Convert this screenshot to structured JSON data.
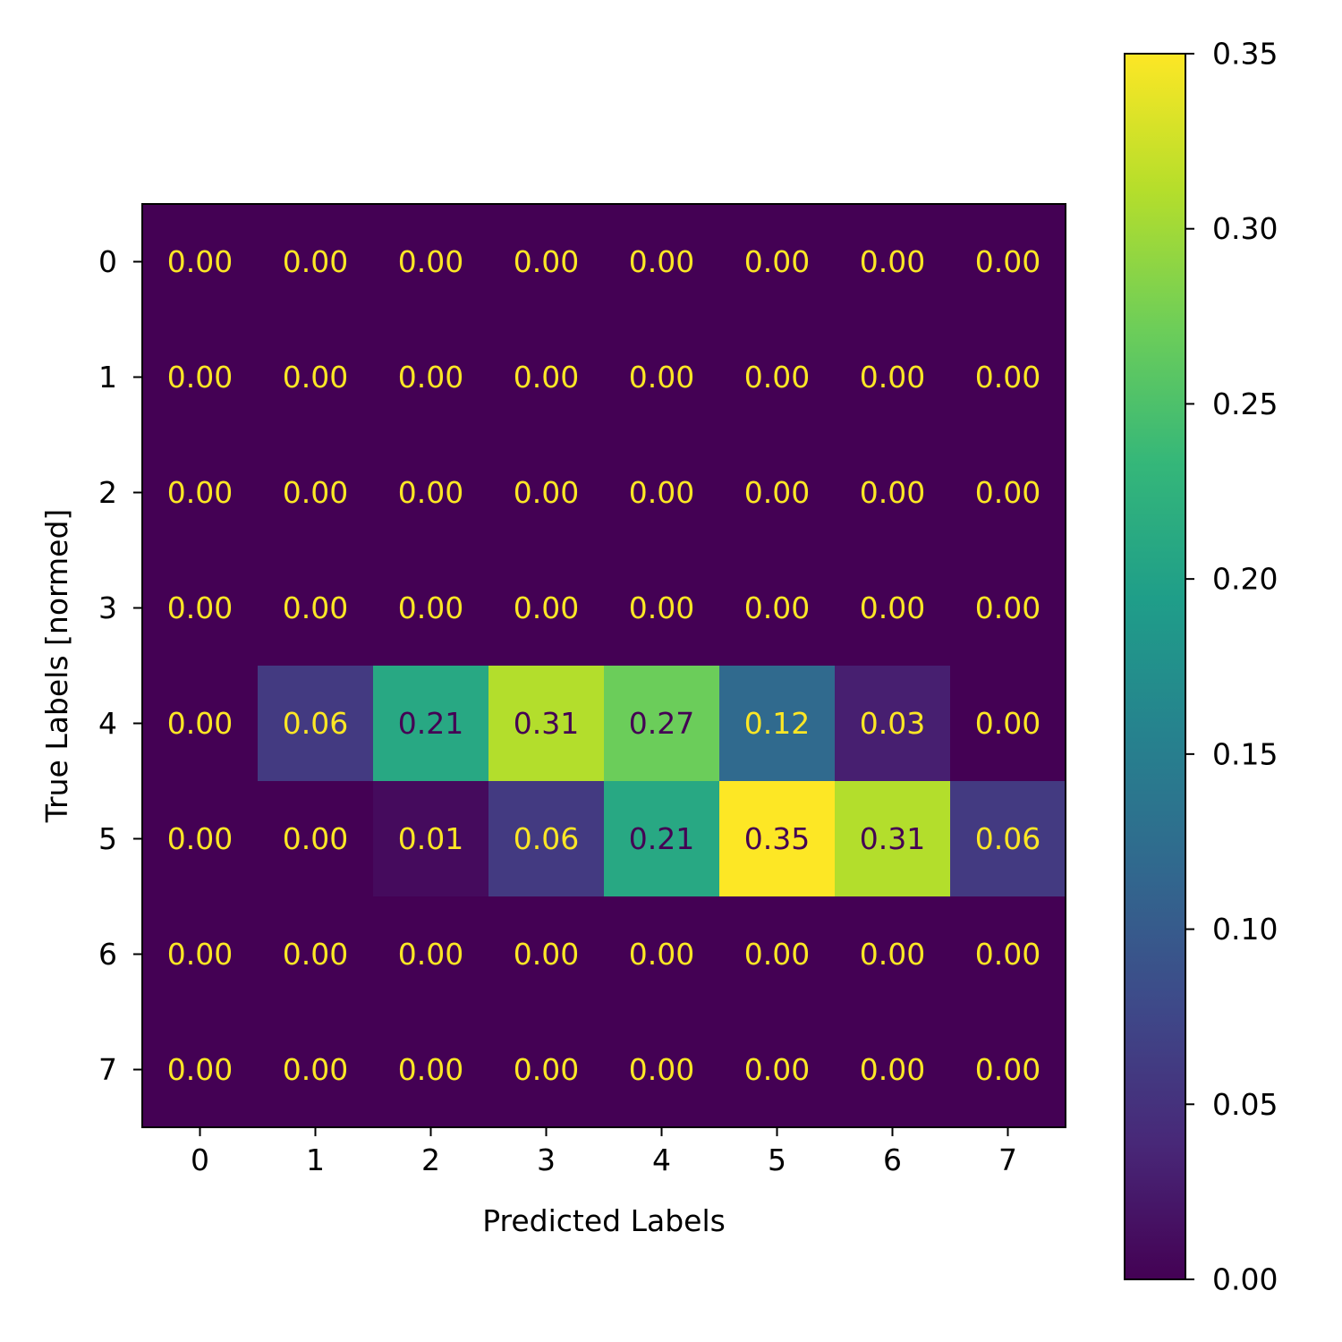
{
  "chart_data": {
    "type": "heatmap",
    "title": "",
    "xlabel": "Predicted Labels",
    "ylabel": "True Labels [normed]",
    "x_categories": [
      "0",
      "1",
      "2",
      "3",
      "4",
      "5",
      "6",
      "7"
    ],
    "y_categories": [
      "0",
      "1",
      "2",
      "3",
      "4",
      "5",
      "6",
      "7"
    ],
    "values": [
      [
        0.0,
        0.0,
        0.0,
        0.0,
        0.0,
        0.0,
        0.0,
        0.0
      ],
      [
        0.0,
        0.0,
        0.0,
        0.0,
        0.0,
        0.0,
        0.0,
        0.0
      ],
      [
        0.0,
        0.0,
        0.0,
        0.0,
        0.0,
        0.0,
        0.0,
        0.0
      ],
      [
        0.0,
        0.0,
        0.0,
        0.0,
        0.0,
        0.0,
        0.0,
        0.0
      ],
      [
        0.0,
        0.06,
        0.21,
        0.31,
        0.27,
        0.12,
        0.03,
        0.0
      ],
      [
        0.0,
        0.0,
        0.01,
        0.06,
        0.21,
        0.35,
        0.31,
        0.06
      ],
      [
        0.0,
        0.0,
        0.0,
        0.0,
        0.0,
        0.0,
        0.0,
        0.0
      ],
      [
        0.0,
        0.0,
        0.0,
        0.0,
        0.0,
        0.0,
        0.0,
        0.0
      ]
    ],
    "colormap": "viridis",
    "vmin": 0.0,
    "vmax": 0.35,
    "colorbar_ticks": [
      "0.00",
      "0.05",
      "0.10",
      "0.15",
      "0.20",
      "0.25",
      "0.30",
      "0.35"
    ],
    "text_color_dark": "#440154",
    "text_color_light": "#fde725"
  }
}
